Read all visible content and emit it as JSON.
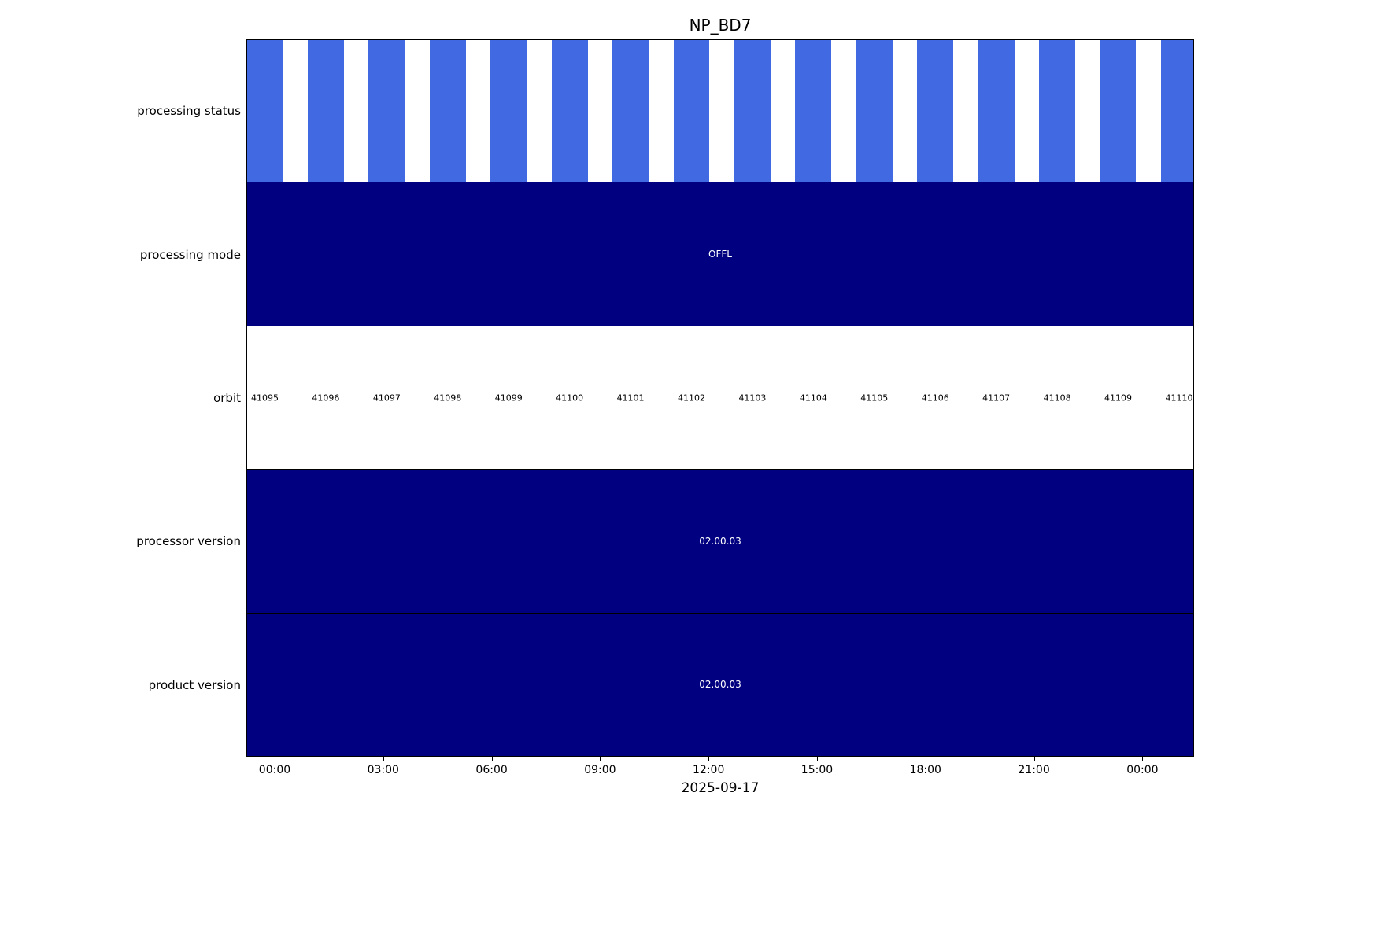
{
  "chart_data": {
    "type": "heatmap",
    "title": "NP_BD7",
    "xlabel": "2025-09-17",
    "x_tick_labels": [
      "00:00",
      "03:00",
      "06:00",
      "09:00",
      "12:00",
      "15:00",
      "18:00",
      "21:00",
      "00:00"
    ],
    "legend": "none",
    "grid": false,
    "rows": [
      {
        "label": "processing status",
        "kind": "segments",
        "segment_count": 16,
        "color": "#4169E1",
        "background": "#ffffff"
      },
      {
        "label": "processing mode",
        "kind": "band",
        "value": "OFFL",
        "color": "#000080",
        "text_color": "#ffffff"
      },
      {
        "label": "orbit",
        "kind": "values",
        "values": [
          41095,
          41096,
          41097,
          41098,
          41099,
          41100,
          41101,
          41102,
          41103,
          41104,
          41105,
          41106,
          41107,
          41108,
          41109,
          41110
        ],
        "color": "#ffffff",
        "text_color": "#000000"
      },
      {
        "label": "processor version",
        "kind": "band",
        "value": "02.00.03",
        "color": "#000080",
        "text_color": "#ffffff"
      },
      {
        "label": "product version",
        "kind": "band",
        "value": "02.00.03",
        "color": "#000080",
        "text_color": "#ffffff"
      }
    ]
  },
  "colors": {
    "segment_blue": "#4169E1",
    "band_navy": "#000080",
    "background": "#ffffff",
    "text": "#000000"
  }
}
